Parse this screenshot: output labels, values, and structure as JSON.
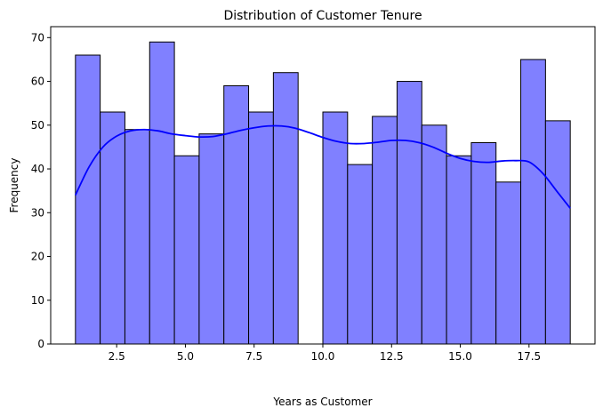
{
  "chart_data": {
    "type": "bar",
    "title": "Distribution of Customer Tenure",
    "xlabel": "Years as Customer",
    "ylabel": "Frequency",
    "xlim": [
      0.1,
      19.9
    ],
    "ylim": [
      0,
      72.5
    ],
    "xticks": [
      2.5,
      5.0,
      7.5,
      10.0,
      12.5,
      15.0,
      17.5
    ],
    "xtick_labels": [
      "2.5",
      "5.0",
      "7.5",
      "10.0",
      "12.5",
      "15.0",
      "17.5"
    ],
    "yticks": [
      0,
      10,
      20,
      30,
      40,
      50,
      60,
      70
    ],
    "ytick_labels": [
      "0",
      "10",
      "20",
      "30",
      "40",
      "50",
      "60",
      "70"
    ],
    "bin_edges": [
      1.0,
      1.9,
      2.8,
      3.7,
      4.6,
      5.5,
      6.4,
      7.3,
      8.2,
      9.1,
      10.0,
      10.9,
      11.8,
      12.7,
      13.6,
      14.5,
      15.4,
      16.3,
      17.2,
      18.1,
      19.0
    ],
    "counts": [
      66,
      53,
      49,
      69,
      43,
      48,
      59,
      53,
      62,
      0,
      53,
      41,
      52,
      60,
      50,
      43,
      46,
      37,
      65,
      51
    ],
    "bar_color": "#8080ff",
    "bar_edge_color": "#000000",
    "kde": {
      "color": "#0000ff",
      "x": [
        1.0,
        1.5,
        2.0,
        2.5,
        3.0,
        3.5,
        4.0,
        4.5,
        5.0,
        5.5,
        6.0,
        6.5,
        7.0,
        7.5,
        8.0,
        8.5,
        9.0,
        9.5,
        10.0,
        10.5,
        11.0,
        11.5,
        12.0,
        12.5,
        13.0,
        13.5,
        14.0,
        14.5,
        15.0,
        15.5,
        16.0,
        16.5,
        17.0,
        17.5,
        18.0,
        18.5,
        19.0
      ],
      "y": [
        34.0,
        40.5,
        45.0,
        47.5,
        48.7,
        49.0,
        48.7,
        48.0,
        47.6,
        47.3,
        47.4,
        48.0,
        48.8,
        49.4,
        49.8,
        49.8,
        49.3,
        48.3,
        47.2,
        46.3,
        45.8,
        45.8,
        46.1,
        46.5,
        46.5,
        46.0,
        45.0,
        43.6,
        42.4,
        41.7,
        41.5,
        41.8,
        41.9,
        41.6,
        39.0,
        35.0,
        31.0
      ]
    }
  }
}
